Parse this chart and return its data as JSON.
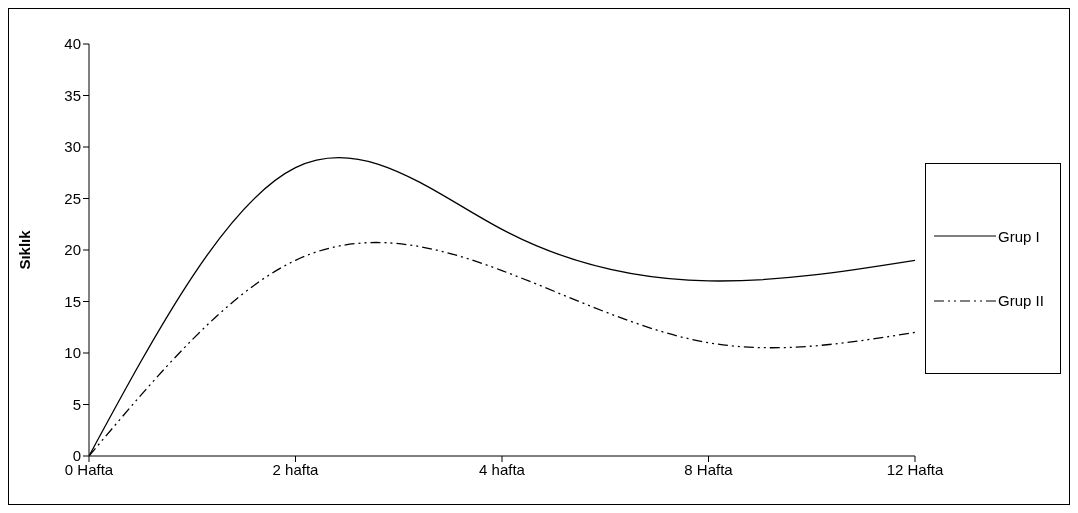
{
  "chart_data": {
    "type": "line",
    "ylabel": "Sıklık",
    "categories": [
      "0 Hafta",
      "2 hafta",
      "4 hafta",
      "8 Hafta",
      "12 Hafta"
    ],
    "series": [
      {
        "name": "Grup I",
        "color": "#000000",
        "values": [
          0,
          28,
          22,
          17,
          19
        ],
        "line_style": "solid"
      },
      {
        "name": "Grup II",
        "color": "#000000",
        "values": [
          0,
          19,
          18,
          11,
          12
        ],
        "line_style": "dashed"
      }
    ],
    "ylim": [
      0,
      40
    ],
    "yticks": [
      0,
      5,
      10,
      15,
      20,
      25,
      30,
      35,
      40
    ],
    "grid": false,
    "legend": "right",
    "marker": "none"
  }
}
